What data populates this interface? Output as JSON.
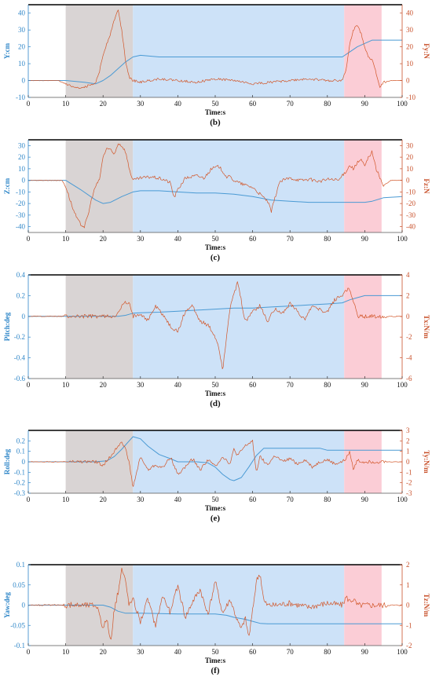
{
  "colors": {
    "left_axis": "#2e86c8",
    "right_axis": "#c8502a",
    "blue_series": "#4a9ad4",
    "red_series": "#d2572a",
    "gray_band": "#d9d4d4",
    "blue_band": "#cde2f8",
    "red_band": "#fbcdd6"
  },
  "chart_data": [
    {
      "type": "line",
      "caption": "(b)",
      "xlabel": "Time:s",
      "ylabel_left": "Y:cm",
      "ylabel_right": "Fy:N",
      "xlim": [
        0,
        100
      ],
      "ylim_left": [
        -10,
        45
      ],
      "ylim_right": [
        -10,
        45
      ],
      "xticks": [
        0,
        10,
        20,
        30,
        40,
        50,
        60,
        70,
        80,
        90,
        100
      ],
      "yticks_left": [
        -10,
        0,
        10,
        20,
        30,
        40
      ],
      "yticks_right": [
        -10,
        0,
        10,
        20,
        30,
        40
      ],
      "bands": [
        {
          "from": 10,
          "to": 28,
          "color": "gray"
        },
        {
          "from": 28,
          "to": 84.5,
          "color": "blue"
        },
        {
          "from": 84.5,
          "to": 94.5,
          "color": "red"
        }
      ],
      "series": [
        {
          "axis": "left",
          "color": "blue",
          "x": [
            0,
            10,
            15,
            18,
            20,
            22,
            24,
            26,
            28,
            30,
            35,
            40,
            50,
            60,
            70,
            80,
            84,
            86,
            88,
            90,
            92,
            95,
            100
          ],
          "y": [
            0,
            0,
            -1,
            -2,
            0,
            3,
            7,
            11,
            14,
            15,
            14,
            14,
            14,
            14,
            14,
            14,
            14,
            17,
            20,
            22,
            24,
            24,
            24
          ]
        },
        {
          "axis": "right",
          "color": "red",
          "x": [
            0,
            8,
            10,
            12,
            14,
            16,
            18,
            19,
            20,
            21,
            22,
            23,
            24,
            25,
            26,
            27,
            28,
            30,
            35,
            40,
            45,
            50,
            55,
            60,
            65,
            70,
            75,
            80,
            84,
            85,
            86,
            87,
            88,
            89,
            90,
            91,
            92,
            93,
            94,
            95,
            97,
            100
          ],
          "y": [
            0,
            0,
            -2,
            -4,
            -5,
            -3,
            -1,
            5,
            15,
            22,
            28,
            36,
            42,
            30,
            12,
            2,
            0,
            -1,
            1,
            0,
            -1,
            1,
            0,
            -2,
            -1,
            0,
            1,
            0,
            0,
            6,
            22,
            30,
            33,
            28,
            20,
            14,
            12,
            5,
            -4,
            -1,
            0,
            0
          ],
          "noise": 0.7
        }
      ]
    },
    {
      "type": "line",
      "caption": "(c)",
      "xlabel": "Time:s",
      "ylabel_left": "Z:cm",
      "ylabel_right": "Fz:N",
      "xlim": [
        0,
        100
      ],
      "ylim_left": [
        -45,
        35
      ],
      "ylim_right": [
        -45,
        35
      ],
      "xticks": [
        0,
        10,
        20,
        30,
        40,
        50,
        60,
        70,
        80,
        90,
        100
      ],
      "yticks_left": [
        -40,
        -30,
        -20,
        -10,
        0,
        10,
        20,
        30
      ],
      "yticks_right": [
        -40,
        -30,
        -20,
        -10,
        0,
        10,
        20,
        30
      ],
      "bands": [
        {
          "from": 10,
          "to": 28,
          "color": "gray"
        },
        {
          "from": 28,
          "to": 84.5,
          "color": "blue"
        },
        {
          "from": 84.5,
          "to": 94.5,
          "color": "red"
        }
      ],
      "series": [
        {
          "axis": "left",
          "color": "blue",
          "x": [
            0,
            10,
            14,
            18,
            20,
            22,
            25,
            28,
            30,
            35,
            40,
            45,
            50,
            55,
            60,
            65,
            70,
            75,
            80,
            85,
            88,
            90,
            92,
            95,
            100
          ],
          "y": [
            0,
            0,
            -8,
            -17,
            -20,
            -19,
            -14,
            -10,
            -9,
            -9,
            -10,
            -11,
            -11,
            -12,
            -14,
            -17,
            -18,
            -19,
            -19,
            -19,
            -19,
            -19,
            -18,
            -15,
            -14
          ]
        },
        {
          "axis": "right",
          "color": "red",
          "x": [
            0,
            9,
            10,
            11,
            12,
            13,
            14,
            15,
            16,
            17,
            18,
            19,
            20,
            21,
            22,
            23,
            24,
            25,
            26,
            27,
            28,
            30,
            33,
            36,
            38,
            39,
            40,
            42,
            45,
            47,
            49,
            51,
            52,
            53,
            54,
            55,
            57,
            60,
            62,
            64,
            65,
            66,
            67,
            68,
            70,
            73,
            75,
            78,
            80,
            83,
            85,
            86,
            87,
            88,
            89,
            90,
            91,
            92,
            93,
            94,
            95,
            97,
            100
          ],
          "y": [
            0,
            0,
            -5,
            -15,
            -25,
            -33,
            -38,
            -40,
            -30,
            -15,
            -5,
            0,
            20,
            28,
            26,
            22,
            32,
            30,
            25,
            10,
            0,
            2,
            3,
            1,
            -2,
            -15,
            -8,
            2,
            4,
            2,
            10,
            12,
            8,
            3,
            3,
            0,
            -3,
            -6,
            -12,
            -18,
            -27,
            -15,
            -3,
            0,
            2,
            0,
            1,
            -1,
            1,
            0,
            8,
            13,
            10,
            15,
            18,
            12,
            20,
            25,
            10,
            3,
            -5,
            0,
            0
          ],
          "noise": 1.4
        }
      ]
    },
    {
      "type": "line",
      "caption": "(d)",
      "xlabel": "Time:s",
      "ylabel_left": "Pitch:deg",
      "ylabel_right": "Tx:N/m",
      "xlim": [
        0,
        100
      ],
      "ylim_left": [
        -0.6,
        0.4
      ],
      "ylim_right": [
        -6,
        4
      ],
      "xticks": [
        0,
        10,
        20,
        30,
        40,
        50,
        60,
        70,
        80,
        90,
        100
      ],
      "yticks_left": [
        -0.6,
        -0.4,
        -0.2,
        0,
        0.2,
        0.4
      ],
      "yticks_right": [
        -6,
        -4,
        -2,
        0,
        2,
        4
      ],
      "ytick_labels_left": [
        "-0.6",
        "-0.4",
        "-0.2",
        "0",
        "0.2",
        "0.4"
      ],
      "bands": [
        {
          "from": 10,
          "to": 28,
          "color": "gray"
        },
        {
          "from": 28,
          "to": 84.5,
          "color": "blue"
        },
        {
          "from": 84.5,
          "to": 94.5,
          "color": "red"
        }
      ],
      "series": [
        {
          "axis": "left",
          "color": "blue",
          "x": [
            0,
            20,
            24,
            26,
            27,
            28,
            30,
            35,
            40,
            45,
            50,
            55,
            60,
            65,
            70,
            75,
            80,
            84,
            86,
            88,
            90,
            92,
            95,
            100
          ],
          "y": [
            0,
            0,
            0,
            0.01,
            0.02,
            0.03,
            0.035,
            0.04,
            0.05,
            0.06,
            0.07,
            0.08,
            0.08,
            0.09,
            0.1,
            0.11,
            0.12,
            0.13,
            0.16,
            0.18,
            0.2,
            0.2,
            0.2,
            0.2
          ]
        },
        {
          "axis": "right",
          "color": "red",
          "x": [
            0,
            20,
            22,
            24,
            25,
            26,
            27,
            28,
            30,
            32,
            34,
            36,
            38,
            40,
            42,
            44,
            46,
            48,
            50,
            51,
            52,
            53,
            54,
            55,
            56,
            58,
            60,
            62,
            64,
            66,
            68,
            70,
            72,
            74,
            76,
            78,
            80,
            82,
            84,
            85,
            86,
            87,
            88,
            89,
            90,
            95,
            100
          ],
          "y": [
            0,
            0,
            0,
            0.2,
            1,
            1.3,
            1.2,
            0,
            0.3,
            -0.4,
            1,
            0.2,
            -1,
            -1.5,
            0.5,
            1,
            -0.5,
            -0.8,
            -2,
            -3,
            -5.2,
            -2,
            1,
            2,
            3.3,
            -0.5,
            0.5,
            1,
            -0.5,
            0.8,
            0.3,
            1.2,
            0.5,
            -0.3,
            1,
            0.6,
            0.5,
            1.6,
            2,
            2.6,
            2.5,
            1.5,
            0,
            0,
            0,
            0,
            0
          ],
          "noise": 0.2
        }
      ]
    },
    {
      "type": "line",
      "caption": "(e)",
      "xlabel": "Time:s",
      "ylabel_left": "Roll:deg",
      "ylabel_right": "Ty:N/m",
      "xlim": [
        0,
        100
      ],
      "ylim_left": [
        -0.3,
        0.3
      ],
      "ylim_right": [
        -3,
        3
      ],
      "xticks": [
        0,
        10,
        20,
        30,
        40,
        50,
        60,
        70,
        80,
        90,
        100
      ],
      "yticks_left": [
        -0.3,
        -0.2,
        -0.1,
        0,
        0.1,
        0.2
      ],
      "yticks_right": [
        -3,
        -2,
        -1,
        0,
        1,
        2,
        3
      ],
      "ytick_labels_left": [
        "-0.3",
        "-0.2",
        "-0.1",
        "0",
        "0.1",
        "0.2"
      ],
      "bands": [
        {
          "from": 10,
          "to": 28,
          "color": "gray"
        },
        {
          "from": 28,
          "to": 84.5,
          "color": "blue"
        },
        {
          "from": 84.5,
          "to": 94.5,
          "color": "red"
        }
      ],
      "series": [
        {
          "axis": "left",
          "color": "blue",
          "x": [
            0,
            18,
            21,
            23,
            25,
            27,
            28,
            30,
            32,
            35,
            38,
            40,
            45,
            48,
            50,
            52,
            54,
            55,
            57,
            59,
            61,
            63,
            65,
            70,
            75,
            78,
            80,
            85,
            90,
            95,
            100
          ],
          "y": [
            0,
            0,
            0.01,
            0.05,
            0.12,
            0.2,
            0.24,
            0.22,
            0.15,
            0.07,
            0.03,
            0,
            0,
            -0.01,
            -0.05,
            -0.12,
            -0.17,
            -0.18,
            -0.15,
            -0.05,
            0.06,
            0.13,
            0.13,
            0.13,
            0.13,
            0.13,
            0.11,
            0.11,
            0.11,
            0.11,
            0.11
          ]
        },
        {
          "axis": "right",
          "color": "red",
          "x": [
            0,
            18,
            20,
            22,
            24,
            25,
            26,
            27,
            28,
            30,
            32,
            34,
            36,
            38,
            40,
            42,
            44,
            46,
            48,
            50,
            52,
            54,
            55,
            56,
            58,
            60,
            61,
            62,
            64,
            66,
            68,
            70,
            72,
            74,
            76,
            78,
            80,
            82,
            84,
            85,
            86,
            87,
            88,
            89,
            90,
            95,
            100
          ],
          "y": [
            0,
            0,
            -0.3,
            0.5,
            1.5,
            2,
            1.2,
            0,
            -2.5,
            0.5,
            -0.8,
            -0.3,
            -0.6,
            0.5,
            -1.2,
            -0.5,
            0.3,
            -0.8,
            0.2,
            -0.4,
            0.5,
            -0.2,
            1.2,
            0.6,
            1.5,
            2,
            -1,
            0.5,
            -0.3,
            0.6,
            0,
            0.3,
            -0.2,
            0.2,
            -0.5,
            0,
            0.2,
            -0.2,
            0,
            0.3,
            1,
            -0.8,
            0.2,
            0,
            0,
            0,
            0
          ],
          "noise": 0.15
        }
      ]
    },
    {
      "type": "line",
      "caption": "(f)",
      "xlabel": "Time:s",
      "ylabel_left": "Yaw:deg",
      "ylabel_right": "Tz:N/m",
      "xlim": [
        0,
        100
      ],
      "ylim_left": [
        -0.1,
        0.1
      ],
      "ylim_right": [
        -2,
        2
      ],
      "xticks": [
        0,
        10,
        20,
        30,
        40,
        50,
        60,
        70,
        80,
        90,
        100
      ],
      "yticks_left": [
        -0.1,
        -0.05,
        0,
        0.05,
        0.1
      ],
      "yticks_right": [
        -2,
        -1,
        0,
        1,
        2
      ],
      "ytick_labels_left": [
        "-0.1",
        "-0.05",
        "0",
        "0.05",
        "0.1"
      ],
      "bands": [
        {
          "from": 10,
          "to": 28,
          "color": "gray"
        },
        {
          "from": 28,
          "to": 84.5,
          "color": "blue"
        },
        {
          "from": 84.5,
          "to": 94.5,
          "color": "red"
        }
      ],
      "series": [
        {
          "axis": "left",
          "color": "blue",
          "x": [
            0,
            20,
            22,
            24,
            26,
            28,
            30,
            35,
            40,
            45,
            50,
            53,
            55,
            58,
            60,
            62,
            64,
            70,
            80,
            90,
            100
          ],
          "y": [
            0,
            0,
            -0.005,
            -0.015,
            -0.02,
            -0.02,
            -0.02,
            -0.021,
            -0.022,
            -0.022,
            -0.022,
            -0.025,
            -0.03,
            -0.035,
            -0.04,
            -0.045,
            -0.046,
            -0.046,
            -0.046,
            -0.046,
            -0.046
          ]
        },
        {
          "axis": "right",
          "color": "red",
          "x": [
            0,
            18,
            19,
            20,
            21,
            22,
            23,
            24,
            25,
            26,
            27,
            28,
            30,
            32,
            34,
            36,
            38,
            40,
            42,
            44,
            46,
            48,
            50,
            52,
            54,
            56,
            57,
            58,
            59,
            60,
            61,
            62,
            63,
            64,
            66,
            70,
            75,
            80,
            84,
            85,
            86,
            87,
            88,
            90,
            95,
            100
          ],
          "y": [
            0,
            0,
            -0.3,
            -1.2,
            -0.6,
            -1.9,
            -0.2,
            0.6,
            1.8,
            1.2,
            0,
            0.3,
            -0.8,
            0.3,
            -1,
            0.5,
            -0.4,
            1,
            -0.6,
            0.2,
            0.8,
            -0.5,
            1.2,
            -0.4,
            0.3,
            -0.8,
            -1.2,
            -0.6,
            -1.6,
            -0.3,
            1.2,
            1.6,
            0.2,
            0,
            0,
            0.1,
            -0.1,
            0.1,
            0,
            0.4,
            0.2,
            0.3,
            0,
            0,
            0,
            0
          ],
          "noise": 0.15
        }
      ]
    }
  ]
}
